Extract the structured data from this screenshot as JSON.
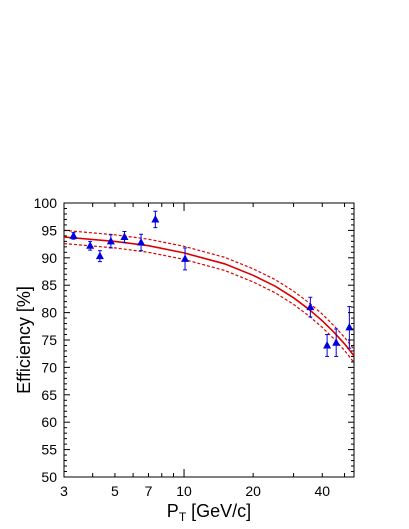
{
  "chart_data": {
    "type": "scatter",
    "xlabel": "P",
    "xlabel_sub": "T",
    "xlabel_unit": " [GeV/c]",
    "ylabel": "Efficiency [%]",
    "x_scale": "log",
    "xlim": [
      3,
      55
    ],
    "ylim": [
      50,
      100
    ],
    "x_ticks": [
      3,
      5,
      7,
      10,
      20,
      40
    ],
    "y_ticks": [
      50,
      55,
      60,
      65,
      70,
      75,
      80,
      85,
      90,
      95,
      100
    ],
    "grid": false,
    "points": [
      {
        "x": 3.3,
        "y": 94.0,
        "err": 0.6
      },
      {
        "x": 3.9,
        "y": 92.2,
        "err": 0.8
      },
      {
        "x": 4.3,
        "y": 90.3,
        "err": 1.0
      },
      {
        "x": 4.8,
        "y": 93.0,
        "err": 1.2
      },
      {
        "x": 5.5,
        "y": 93.8,
        "err": 1.0
      },
      {
        "x": 6.5,
        "y": 92.8,
        "err": 1.5
      },
      {
        "x": 7.5,
        "y": 97.0,
        "err": 1.5
      },
      {
        "x": 10.1,
        "y": 89.8,
        "err": 2.0
      },
      {
        "x": 35.5,
        "y": 81.0,
        "err": 1.8
      },
      {
        "x": 42.0,
        "y": 74.0,
        "err": 2.0
      },
      {
        "x": 46.0,
        "y": 74.5,
        "err": 2.5
      },
      {
        "x": 52.5,
        "y": 77.3,
        "err": 3.8
      }
    ],
    "fit": {
      "x": [
        3,
        5,
        7,
        10,
        15,
        20,
        25,
        30,
        35,
        40,
        45,
        50,
        55
      ],
      "y": [
        93.8,
        93.0,
        92.2,
        90.9,
        88.9,
        86.8,
        84.8,
        82.7,
        80.6,
        78.5,
        76.4,
        74.3,
        72.1
      ],
      "band": 1.2
    },
    "colors": {
      "points": "#0000dd",
      "fit": "#dd0000",
      "axes": "#000000"
    }
  }
}
